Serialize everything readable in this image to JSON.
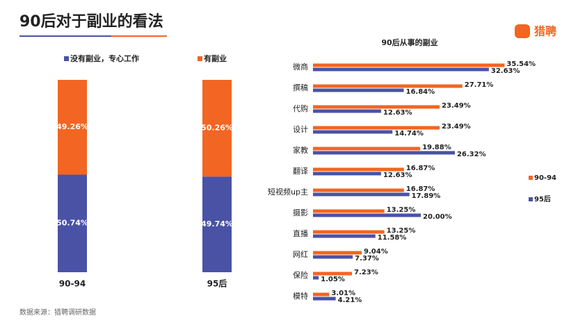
{
  "title": "90后对于副业的看法",
  "logo": "猎聘",
  "source": "数据来源：猎聘调研数据",
  "chart_data": [
    {
      "type": "bar",
      "stacked": true,
      "categories": [
        "90-94",
        "95后"
      ],
      "ylim": [
        0,
        100
      ],
      "legend": "top",
      "series": [
        {
          "name": "没有副业，专心工作",
          "color": "#4a52a6",
          "values": [
            50.74,
            49.74
          ],
          "value_labels": [
            "50.74%",
            "49.74%"
          ]
        },
        {
          "name": "有副业",
          "color": "#f26522",
          "values": [
            49.26,
            50.26
          ],
          "value_labels": [
            "49.26%",
            "50.26%"
          ]
        }
      ]
    },
    {
      "type": "bar",
      "orientation": "horizontal",
      "title": "90后从事的副业",
      "xlim": [
        0,
        40
      ],
      "legend": "right",
      "categories": [
        "微商",
        "撰稿",
        "代购",
        "设计",
        "家教",
        "翻译",
        "短视频up主",
        "摄影",
        "直播",
        "网红",
        "保险",
        "模特"
      ],
      "series": [
        {
          "name": "90-94",
          "color": "#f26522",
          "values": [
            35.54,
            27.71,
            23.49,
            23.49,
            19.88,
            16.87,
            16.87,
            13.25,
            13.25,
            9.04,
            7.23,
            3.01
          ],
          "value_labels": [
            "35.54%",
            "27.71%",
            "23.49%",
            "23.49%",
            "19.88%",
            "16.87%",
            "16.87%",
            "13.25%",
            "13.25%",
            "9.04%",
            "7.23%",
            "3.01%"
          ]
        },
        {
          "name": "95后",
          "color": "#4a52a6",
          "values": [
            32.63,
            16.84,
            12.63,
            14.74,
            26.32,
            12.63,
            17.89,
            20.0,
            11.58,
            7.37,
            1.05,
            4.21
          ],
          "value_labels": [
            "32.63%",
            "16.84%",
            "12.63%",
            "14.74%",
            "26.32%",
            "12.63%",
            "17.89%",
            "20.00%",
            "11.58%",
            "7.37%",
            "1.05%",
            "4.21%"
          ]
        }
      ]
    }
  ]
}
